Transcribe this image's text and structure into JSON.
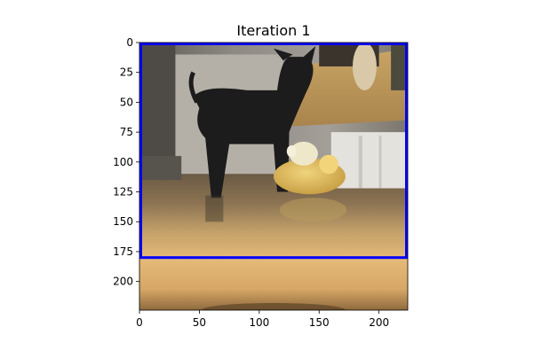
{
  "chart_data": {
    "type": "image",
    "title": "Iteration 1",
    "xlabel": "",
    "ylabel": "",
    "xlim": [
      0,
      224
    ],
    "ylim": [
      224,
      0
    ],
    "x_ticks": [
      0,
      50,
      100,
      150,
      200
    ],
    "y_ticks": [
      0,
      25,
      50,
      75,
      100,
      125,
      150,
      175,
      200
    ],
    "bounding_box": {
      "x0": 0,
      "y0": 0,
      "x1": 224,
      "y1": 180,
      "color": "#0000ff"
    },
    "image_scene": "black-dog-with-yellow-plush-toy-on-wooden-floor"
  }
}
